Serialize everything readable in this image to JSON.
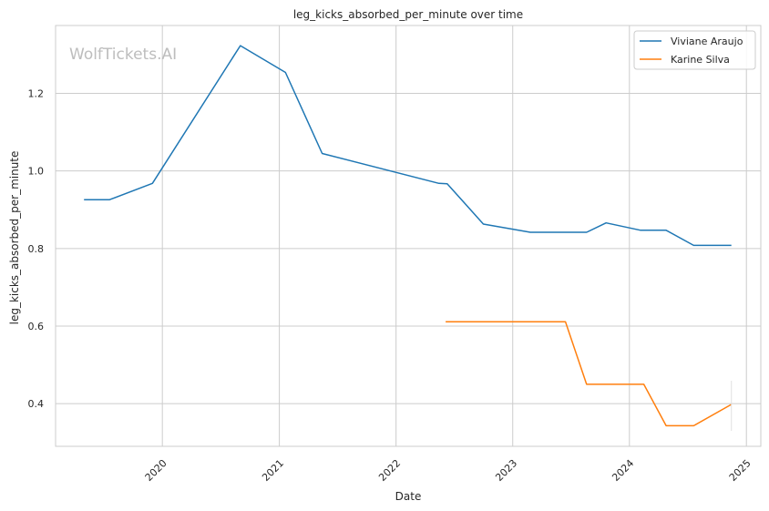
{
  "chart_data": {
    "type": "line",
    "title": "leg_kicks_absorbed_per_minute over time",
    "xlabel": "Date",
    "ylabel": "leg_kicks_absorbed_per_minute",
    "watermark": "WolfTickets.AI",
    "xlim": [
      "2019-02-01",
      "2025-02-15"
    ],
    "ylim": [
      0.29,
      1.375
    ],
    "x_ticks": [
      "2020",
      "2021",
      "2022",
      "2023",
      "2024",
      "2025"
    ],
    "y_ticks": [
      "0.4",
      "0.6",
      "0.8",
      "1.0",
      "1.2"
    ],
    "grid": true,
    "legend_position": "top-right",
    "series": [
      {
        "name": "Viviane Araujo",
        "color": "#1f77b4",
        "points": [
          [
            "2019-05-01",
            0.926
          ],
          [
            "2019-07-20",
            0.926
          ],
          [
            "2019-12-01",
            0.968
          ],
          [
            "2020-09-01",
            1.323
          ],
          [
            "2021-01-20",
            1.254
          ],
          [
            "2021-05-15",
            1.045
          ],
          [
            "2022-05-15",
            0.968
          ],
          [
            "2022-06-10",
            0.967
          ],
          [
            "2022-10-01",
            0.863
          ],
          [
            "2023-02-25",
            0.842
          ],
          [
            "2023-08-20",
            0.842
          ],
          [
            "2023-10-20",
            0.866
          ],
          [
            "2024-02-05",
            0.847
          ],
          [
            "2024-04-25",
            0.847
          ],
          [
            "2024-07-20",
            0.808
          ],
          [
            "2024-11-15",
            0.808
          ]
        ]
      },
      {
        "name": "Karine Silva",
        "color": "#ff7f0e",
        "points": [
          [
            "2022-06-05",
            0.611
          ],
          [
            "2023-06-15",
            0.611
          ],
          [
            "2023-08-20",
            0.45
          ],
          [
            "2024-02-15",
            0.45
          ],
          [
            "2024-04-25",
            0.343
          ],
          [
            "2024-07-20",
            0.343
          ],
          [
            "2024-11-15",
            0.398
          ]
        ]
      }
    ]
  }
}
